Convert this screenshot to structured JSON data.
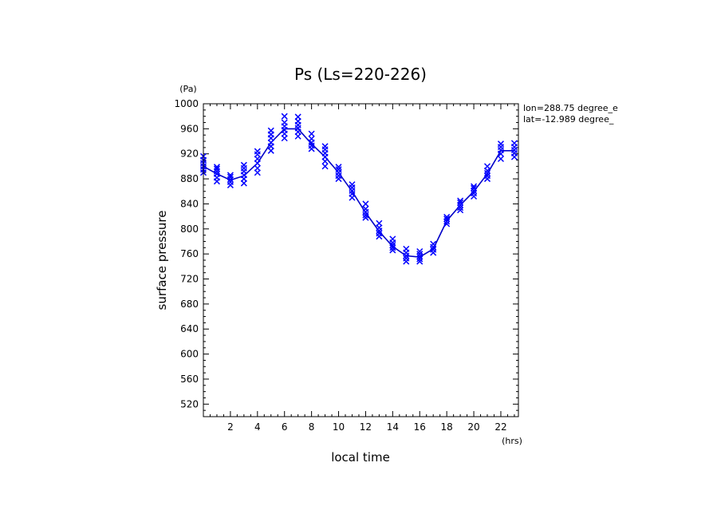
{
  "chart_data": {
    "type": "line",
    "title": "Ps (Ls=220-226)",
    "xlabel": "local time",
    "ylabel": "surface pressure",
    "x_unit": "(hrs)",
    "y_unit": "(Pa)",
    "xlim": [
      0,
      23.3
    ],
    "ylim": [
      500,
      1000
    ],
    "x_ticks": [
      2,
      4,
      6,
      8,
      10,
      12,
      14,
      16,
      18,
      20,
      22
    ],
    "x_tick_labels": [
      "2",
      "4",
      "6",
      "8",
      "10",
      "12",
      "14",
      "16",
      "18",
      "20",
      "22"
    ],
    "y_ticks": [
      520,
      560,
      600,
      640,
      680,
      720,
      760,
      800,
      840,
      880,
      920,
      960,
      1000
    ],
    "y_tick_labels": [
      "520",
      "560",
      "600",
      "640",
      "680",
      "720",
      "760",
      "800",
      "840",
      "880",
      "920",
      "960",
      "1000"
    ],
    "annotations": [
      "lon=288.75 degree_e",
      "lat=-12.989 degree_"
    ],
    "mean_line_color": "#0000c8",
    "marker_color": "#0000ff",
    "series": [
      {
        "name": "mean",
        "x": [
          0,
          1,
          2,
          3,
          4,
          5,
          6,
          7,
          8,
          9,
          10,
          11,
          12,
          13,
          14,
          15,
          16,
          17,
          18,
          19,
          20,
          21,
          22,
          23
        ],
        "y": [
          900,
          888,
          878,
          885,
          905,
          938,
          960,
          960,
          936,
          915,
          890,
          860,
          826,
          796,
          772,
          757,
          755,
          768,
          813,
          838,
          860,
          888,
          925,
          925
        ]
      },
      {
        "name": "samples",
        "marker": "x",
        "x": [
          0,
          0,
          0,
          0,
          0,
          0,
          1,
          1,
          1,
          1,
          1,
          1,
          2,
          2,
          2,
          2,
          2,
          3,
          3,
          3,
          3,
          3,
          3,
          4,
          4,
          4,
          4,
          4,
          4,
          5,
          5,
          5,
          5,
          5,
          5,
          6,
          6,
          6,
          6,
          6,
          6,
          7,
          7,
          7,
          7,
          7,
          7,
          8,
          8,
          8,
          8,
          8,
          9,
          9,
          9,
          9,
          9,
          9,
          10,
          10,
          10,
          10,
          10,
          11,
          11,
          11,
          11,
          11,
          12,
          12,
          12,
          12,
          12,
          13,
          13,
          13,
          13,
          13,
          14,
          14,
          14,
          14,
          14,
          15,
          15,
          15,
          15,
          15,
          16,
          16,
          16,
          16,
          16,
          17,
          17,
          17,
          17,
          18,
          18,
          18,
          18,
          19,
          19,
          19,
          19,
          19,
          20,
          20,
          20,
          20,
          20,
          21,
          21,
          21,
          21,
          21,
          22,
          22,
          22,
          22,
          22,
          23,
          23,
          23,
          23,
          23
        ],
        "y": [
          890,
          895,
          900,
          905,
          910,
          916,
          876,
          882,
          888,
          892,
          896,
          899,
          870,
          875,
          879,
          883,
          886,
          873,
          880,
          886,
          892,
          897,
          902,
          890,
          897,
          905,
          912,
          919,
          924,
          925,
          932,
          938,
          945,
          951,
          957,
          945,
          952,
          958,
          964,
          970,
          980,
          948,
          955,
          961,
          966,
          972,
          979,
          928,
          933,
          938,
          944,
          952,
          900,
          908,
          915,
          921,
          927,
          932,
          880,
          885,
          890,
          895,
          899,
          850,
          856,
          861,
          866,
          871,
          818,
          822,
          827,
          832,
          840,
          788,
          793,
          797,
          802,
          809,
          766,
          770,
          774,
          778,
          784,
          748,
          753,
          757,
          762,
          768,
          748,
          752,
          756,
          760,
          764,
          762,
          767,
          771,
          776,
          808,
          812,
          816,
          819,
          830,
          834,
          838,
          842,
          845,
          852,
          857,
          861,
          865,
          868,
          880,
          885,
          889,
          893,
          900,
          912,
          920,
          926,
          931,
          936,
          915,
          921,
          926,
          931,
          937
        ]
      }
    ]
  }
}
